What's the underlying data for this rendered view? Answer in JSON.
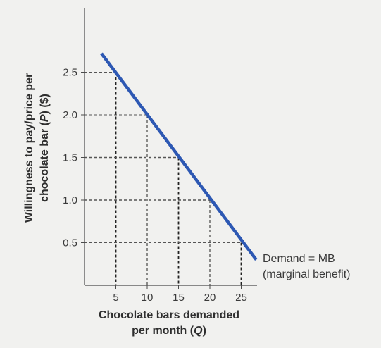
{
  "chart_data": {
    "type": "line",
    "xlabel_line1": "Chocolate bars demanded",
    "xlabel_line2": "per month (",
    "xlabel_q": "Q",
    "xlabel_close": ")",
    "ylabel_line1": "Willingness to pay/price per",
    "ylabel_line2": "chocolate bar (",
    "ylabel_p": "P",
    "ylabel_close": ") ($)",
    "xlim": [
      0,
      28
    ],
    "ylim": [
      0,
      3.0
    ],
    "x_ticks": [
      "5",
      "10",
      "15",
      "20",
      "25"
    ],
    "y_ticks": [
      "2.5",
      "2.0",
      "1.5",
      "1.0",
      "0.5"
    ],
    "series": [
      {
        "name": "Demand = MB",
        "name_line2": "(marginal benefit)",
        "color": "#2d58b3",
        "x": [
          2.7,
          27.4
        ],
        "y": [
          2.72,
          0.3
        ]
      }
    ],
    "reference_points": [
      {
        "x": 5,
        "y": 2.5
      },
      {
        "x": 10,
        "y": 2.0
      },
      {
        "x": 15,
        "y": 1.5
      },
      {
        "x": 20,
        "y": 1.0
      },
      {
        "x": 25,
        "y": 0.5
      }
    ]
  }
}
